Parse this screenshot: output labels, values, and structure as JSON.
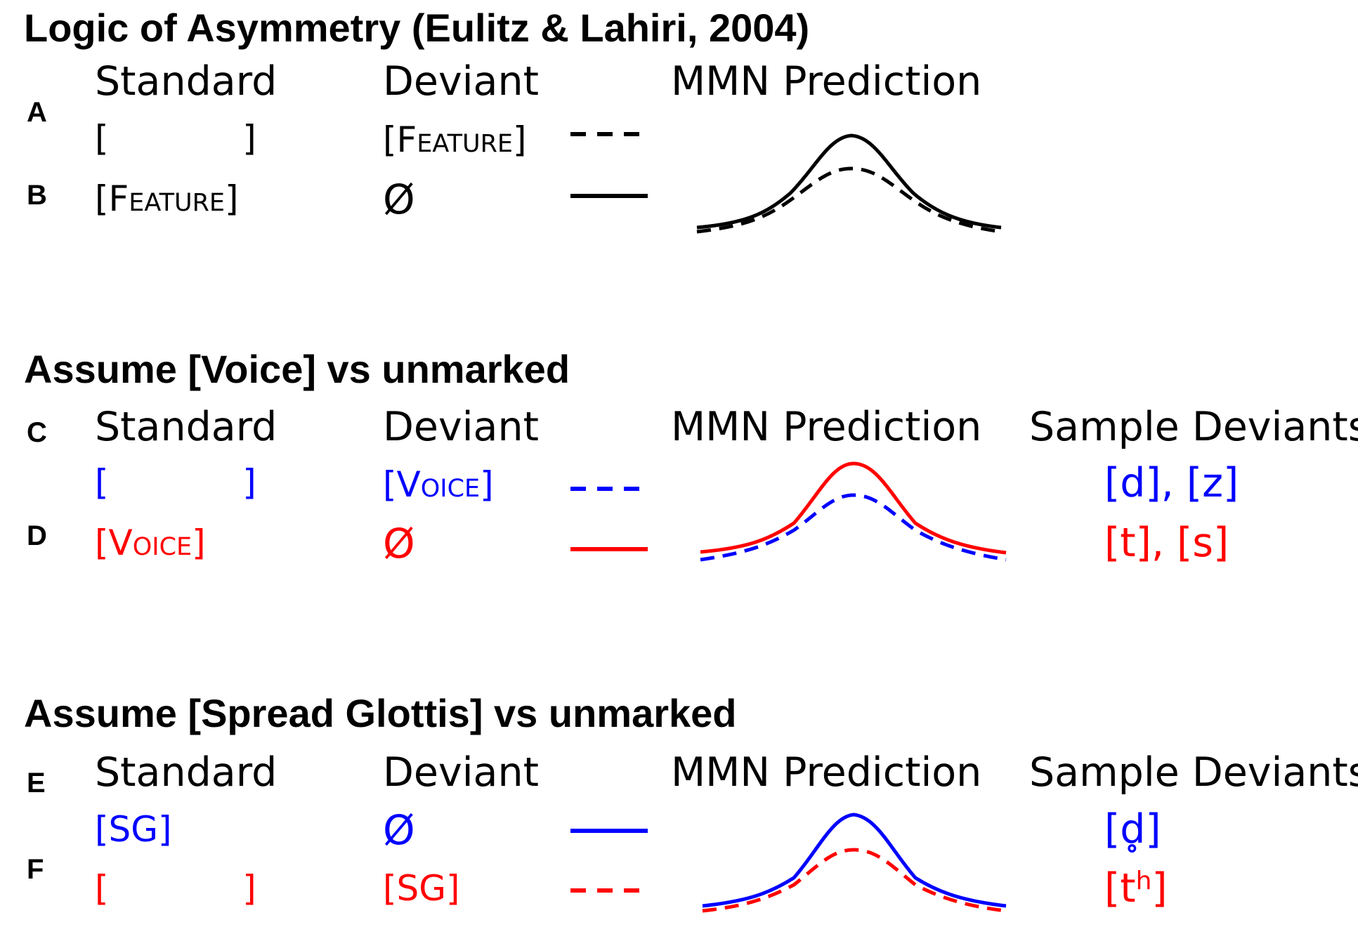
{
  "panels": [
    {
      "title": "Logic of Asymmetry (Eulitz & Lahiri, 2004)",
      "headers": {
        "standard": "Standard",
        "deviant": "Deviant",
        "prediction": "MMN Prediction",
        "samples": ""
      },
      "rows": [
        {
          "letter": "A",
          "standard": "[            ]",
          "deviant": "[Feature]",
          "line_style": "dashed",
          "color": "#000000",
          "sample": ""
        },
        {
          "letter": "B",
          "standard": "[Feature]",
          "deviant": "Ø",
          "line_style": "solid",
          "color": "#000000",
          "sample": ""
        }
      ]
    },
    {
      "title": "Assume [Voice] vs unmarked",
      "headers": {
        "standard": "Standard",
        "deviant": "Deviant",
        "prediction": "MMN Prediction",
        "samples": "Sample Deviants"
      },
      "rows": [
        {
          "letter": "C",
          "standard": "[            ]",
          "deviant": "[Voice]",
          "line_style": "dashed",
          "color": "#0000ff",
          "sample": "[d], [z]"
        },
        {
          "letter": "D",
          "standard": "[Voice]",
          "deviant": "Ø",
          "line_style": "solid",
          "color": "#ff0000",
          "sample": "[t], [s]"
        }
      ]
    },
    {
      "title": "Assume [Spread Glottis] vs unmarked",
      "headers": {
        "standard": "Standard",
        "deviant": "Deviant",
        "prediction": "MMN Prediction",
        "samples": "Sample Deviants"
      },
      "rows": [
        {
          "letter": "E",
          "standard": "[SG]",
          "deviant": "Ø",
          "line_style": "solid",
          "color": "#0000ff",
          "sample": "[d̥]"
        },
        {
          "letter": "F",
          "standard": "[            ]",
          "deviant": "[SG]",
          "line_style": "dashed",
          "color": "#ff0000",
          "sample": "[t",
          "sample_sup": "h",
          "sample_end": "]"
        }
      ]
    }
  ]
}
